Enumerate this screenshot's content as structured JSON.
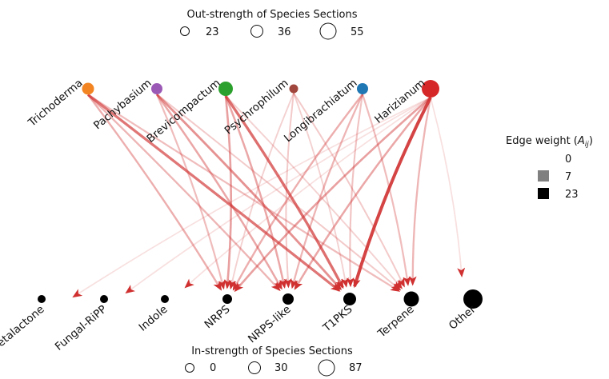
{
  "out_legend": {
    "title": "Out-strength of Species Sections",
    "items": [
      {
        "label": "23",
        "value": 23
      },
      {
        "label": "36",
        "value": 36
      },
      {
        "label": "55",
        "value": 55
      }
    ]
  },
  "in_legend": {
    "title": "In-strength of Species Sections",
    "items": [
      {
        "label": "0",
        "value": 0
      },
      {
        "label": "30",
        "value": 30
      },
      {
        "label": "87",
        "value": 87
      }
    ]
  },
  "weight_legend": {
    "title_main": "Edge weight (",
    "title_var": "A",
    "title_sub": "ij",
    "title_end": ")",
    "items": [
      {
        "label": "0",
        "value": 0,
        "color": "#ffffff"
      },
      {
        "label": "7",
        "value": 7,
        "color": "#808080"
      },
      {
        "label": "23",
        "value": 23,
        "color": "#000000"
      }
    ]
  },
  "sources": [
    {
      "name": "Trichoderma",
      "color": "#f28522"
    },
    {
      "name": "Pachybasium",
      "color": "#9b59b6"
    },
    {
      "name": "Brevicompactum",
      "color": "#2ca02c"
    },
    {
      "name": "Psychrophilum",
      "color": "#a0463c"
    },
    {
      "name": "Longibrachiatum",
      "color": "#1f77b4"
    },
    {
      "name": "Harizianum",
      "color": "#d62728"
    }
  ],
  "targets": [
    {
      "name": "Betalactone"
    },
    {
      "name": "Fungal-RiPP"
    },
    {
      "name": "Indole"
    },
    {
      "name": "NRPS"
    },
    {
      "name": "NRPS-like"
    },
    {
      "name": "T1PKS"
    },
    {
      "name": "Terpene"
    },
    {
      "name": "Other"
    }
  ],
  "edges": [
    {
      "from": "Trichoderma",
      "to": "NRPS",
      "weight": 8
    },
    {
      "from": "Trichoderma",
      "to": "NRPS-like",
      "weight": 7
    },
    {
      "from": "Trichoderma",
      "to": "T1PKS",
      "weight": 16
    },
    {
      "from": "Trichoderma",
      "to": "Terpene",
      "weight": 6
    },
    {
      "from": "Pachybasium",
      "to": "NRPS",
      "weight": 6
    },
    {
      "from": "Pachybasium",
      "to": "NRPS-like",
      "weight": 9
    },
    {
      "from": "Pachybasium",
      "to": "T1PKS",
      "weight": 12
    },
    {
      "from": "Pachybasium",
      "to": "Terpene",
      "weight": 4
    },
    {
      "from": "Brevicompactum",
      "to": "NRPS",
      "weight": 10
    },
    {
      "from": "Brevicompactum",
      "to": "NRPS-like",
      "weight": 9
    },
    {
      "from": "Brevicompactum",
      "to": "T1PKS",
      "weight": 17
    },
    {
      "from": "Brevicompactum",
      "to": "Terpene",
      "weight": 3
    },
    {
      "from": "Psychrophilum",
      "to": "NRPS",
      "weight": 3
    },
    {
      "from": "Psychrophilum",
      "to": "NRPS-like",
      "weight": 4
    },
    {
      "from": "Psychrophilum",
      "to": "T1PKS",
      "weight": 3
    },
    {
      "from": "Psychrophilum",
      "to": "Terpene",
      "weight": 4
    },
    {
      "from": "Longibrachiatum",
      "to": "NRPS",
      "weight": 8
    },
    {
      "from": "Longibrachiatum",
      "to": "NRPS-like",
      "weight": 7
    },
    {
      "from": "Longibrachiatum",
      "to": "T1PKS",
      "weight": 5
    },
    {
      "from": "Longibrachiatum",
      "to": "Terpene",
      "weight": 6
    },
    {
      "from": "Harizianum",
      "to": "NRPS",
      "weight": 10
    },
    {
      "from": "Harizianum",
      "to": "NRPS-like",
      "weight": 9
    },
    {
      "from": "Harizianum",
      "to": "T1PKS",
      "weight": 23
    },
    {
      "from": "Harizianum",
      "to": "Terpene",
      "weight": 7
    },
    {
      "from": "Harizianum",
      "to": "Other",
      "weight": 1
    },
    {
      "from": "Harizianum",
      "to": "Indole",
      "weight": 1
    },
    {
      "from": "Harizianum",
      "to": "Fungal-RiPP",
      "weight": 1
    },
    {
      "from": "Harizianum",
      "to": "Betalactone",
      "weight": 1
    }
  ]
}
